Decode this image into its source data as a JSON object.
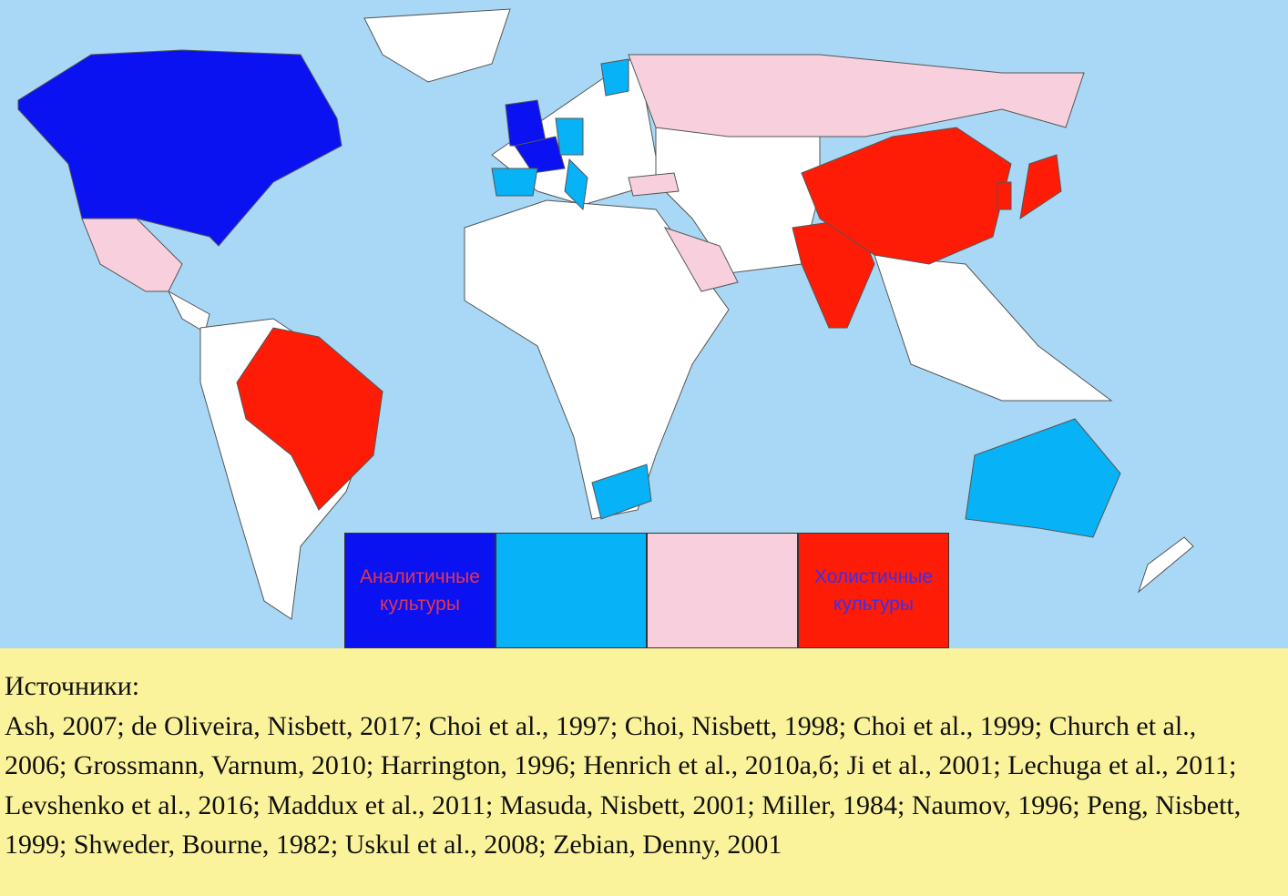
{
  "legend": [
    {
      "color": "#0a12f2",
      "text_color": "#e8344a",
      "label": "Аналитичные культуры"
    },
    {
      "color": "#08b2f6"
    },
    {
      "color": "#f8d0dd"
    },
    {
      "color": "#ff1c06",
      "text_color": "#3a2ef0",
      "label": "Холистичные культуры"
    }
  ],
  "sources": {
    "heading": "Источники:",
    "text": "Ash, 2007; de Oliveira, Nisbett, 2017; Choi et al., 1997; Choi, Nisbett, 1998; Choi et al., 1999; Church et al., 2006; Grossmann, Varnum, 2010; Harrington, 1996; Henrich et al., 2010а,б; Ji et al., 2001; Lechuga et al., 2011; Levshenko et al., 2016; Maddux et al., 2011; Masuda, Nisbett, 2001; Miller, 1984; Naumov, 1996; Peng, Nisbett, 1999; Shweder, Bourne, 1982; Uskul et al., 2008; Zebian, Denny, 2001"
  }
}
